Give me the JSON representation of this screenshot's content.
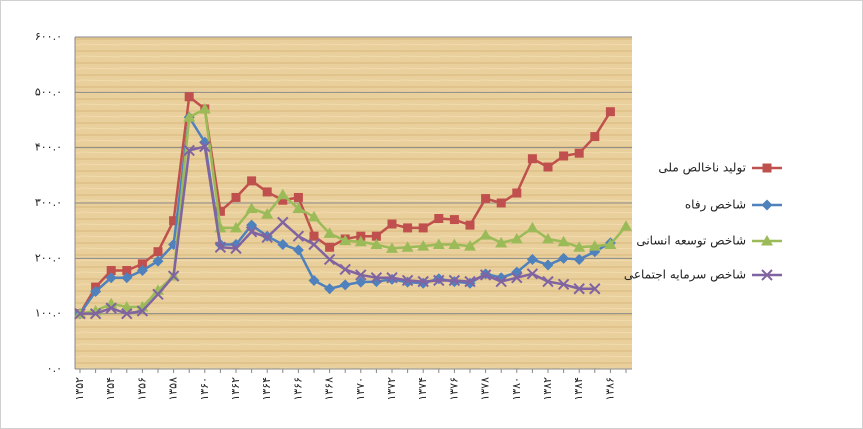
{
  "chart_data": {
    "type": "line",
    "categories": [
      "۱۳۵۲",
      null,
      "۱۳۵۴",
      null,
      "۱۳۵۶",
      null,
      "۱۳۵۸",
      null,
      "۱۳۶۰",
      null,
      "۱۳۶۲",
      null,
      "۱۳۶۴",
      null,
      "۱۳۶۶",
      null,
      "۱۳۶۸",
      null,
      "۱۳۷۰",
      null,
      "۱۳۷۲",
      null,
      "۱۳۷۴",
      null,
      "۱۳۷۶",
      null,
      "۱۳۷۸",
      null,
      "۱۳۸۰",
      null,
      "۱۳۸۲",
      null,
      "۱۳۸۴",
      null,
      "۱۳۸۶",
      null
    ],
    "ylim": [
      0,
      600
    ],
    "yticks": [
      {
        "value": 0,
        "label": "۰.۰"
      },
      {
        "value": 100,
        "label": "۱۰۰.۰"
      },
      {
        "value": 200,
        "label": "۲۰۰.۰"
      },
      {
        "value": 300,
        "label": "۳۰۰.۰"
      },
      {
        "value": 400,
        "label": "۴۰۰.۰"
      },
      {
        "value": 500,
        "label": "۵۰۰.۰"
      },
      {
        "value": 600,
        "label": "۶۰۰.۰"
      }
    ],
    "grid": true,
    "legend": "right",
    "series": [
      {
        "name": "تولید ناخالص ملی",
        "color": "#c0504d",
        "marker": "square",
        "values": [
          100,
          148,
          178,
          178,
          190,
          212,
          268,
          492,
          470,
          285,
          310,
          340,
          320,
          305,
          310,
          240,
          220,
          235,
          240,
          240,
          262,
          255,
          255,
          272,
          270,
          260,
          308,
          300,
          318,
          380,
          365,
          385,
          390,
          420,
          465,
          null
        ]
      },
      {
        "name": "شاخص رفاه",
        "color": "#4f81bd",
        "marker": "diamond",
        "values": [
          100,
          140,
          165,
          165,
          178,
          195,
          225,
          455,
          410,
          225,
          225,
          260,
          240,
          225,
          215,
          160,
          145,
          152,
          157,
          158,
          162,
          157,
          155,
          163,
          158,
          155,
          172,
          165,
          175,
          198,
          188,
          200,
          198,
          212,
          228,
          null
        ]
      },
      {
        "name": "شاخص توسعه انسانی",
        "color": "#9bbb59",
        "marker": "triangle",
        "values": [
          100,
          105,
          118,
          112,
          112,
          142,
          168,
          455,
          470,
          255,
          255,
          290,
          280,
          315,
          290,
          275,
          245,
          232,
          230,
          225,
          218,
          220,
          222,
          225,
          225,
          222,
          242,
          228,
          235,
          255,
          235,
          230,
          220,
          222,
          225,
          258
        ]
      },
      {
        "name": "شاخص سرمایه اجتماعی",
        "color": "#8064a2",
        "marker": "x",
        "values": [
          100,
          100,
          110,
          100,
          105,
          135,
          168,
          395,
          402,
          220,
          218,
          248,
          238,
          265,
          240,
          225,
          198,
          180,
          170,
          165,
          165,
          160,
          158,
          160,
          160,
          158,
          170,
          158,
          165,
          172,
          158,
          153,
          145,
          145,
          null,
          null
        ]
      }
    ]
  }
}
